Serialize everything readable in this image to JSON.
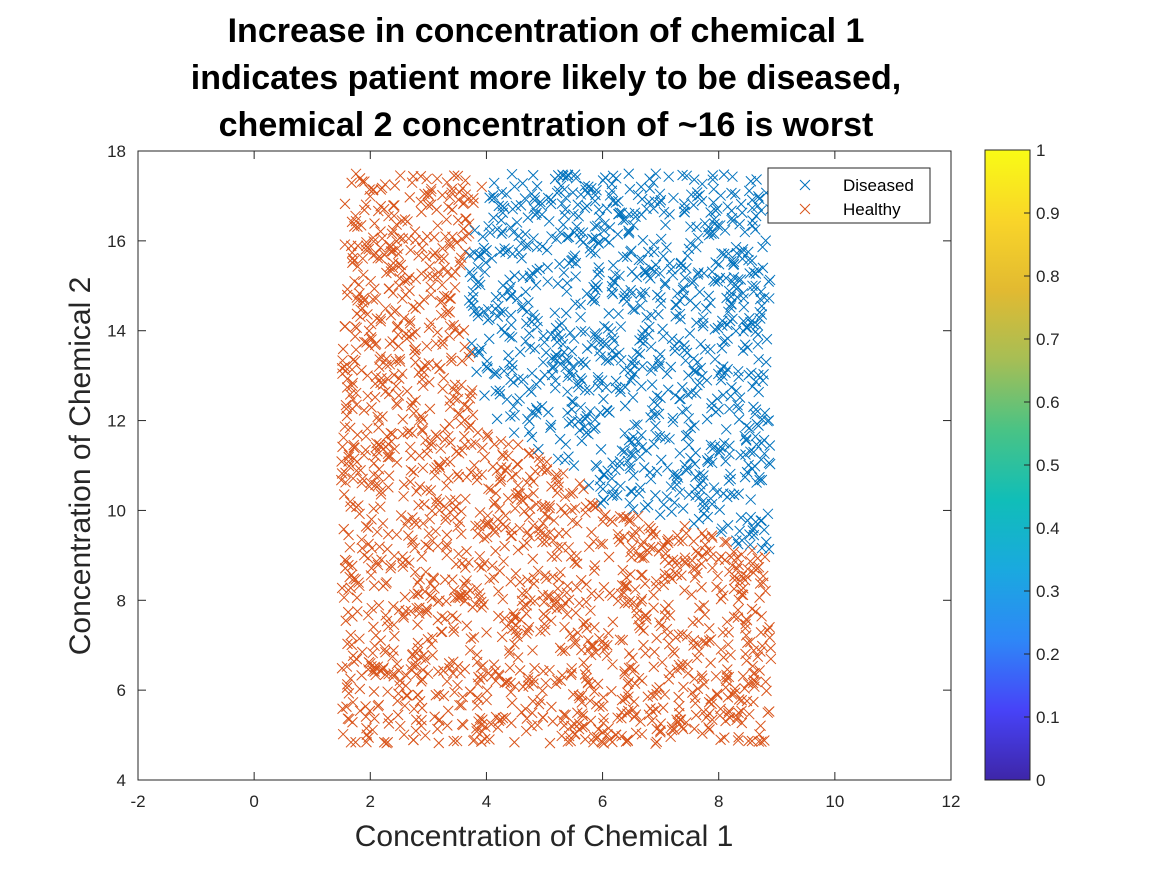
{
  "chart_data": {
    "type": "scatter",
    "title_lines": [
      "Increase in concentration of chemical 1",
      "indicates patient more likely to be diseased,",
      "chemical 2 concentration of ~16 is worst"
    ],
    "xlabel": "Concentration of Chemical 1",
    "ylabel": "Concentration of Chemical 2",
    "xlim": [
      -2,
      12
    ],
    "ylim": [
      4,
      18
    ],
    "xticks": [
      -2,
      0,
      2,
      4,
      6,
      8,
      10,
      12
    ],
    "yticks": [
      4,
      6,
      8,
      10,
      12,
      14,
      16,
      18
    ],
    "marker": "x",
    "grid": false,
    "legend_position": "top-right",
    "series": [
      {
        "name": "Diseased",
        "color": "#0072BD",
        "x_range": [
          3.7,
          8.9
        ],
        "y_range": [
          9.1,
          17.5
        ],
        "region": "upper-right"
      },
      {
        "name": "Healthy",
        "color": "#D95319",
        "x_range": [
          1.5,
          8.9
        ],
        "y_range": [
          4.8,
          17.5
        ],
        "region": "remainder"
      }
    ],
    "boundary": [
      [
        4.0,
        17.5
      ],
      [
        3.5,
        14.8
      ],
      [
        4.0,
        12.0
      ],
      [
        5.5,
        10.8
      ],
      [
        6.0,
        10.0
      ],
      [
        7.5,
        9.7
      ],
      [
        8.2,
        9.3
      ],
      [
        8.9,
        9.0
      ]
    ],
    "colorbar": {
      "ticks": [
        0,
        0.1,
        0.2,
        0.3,
        0.4,
        0.5,
        0.6,
        0.7,
        0.8,
        0.9,
        1
      ],
      "tick_labels": [
        "0",
        "0.1",
        "0.2",
        "0.3",
        "0.4",
        "0.5",
        "0.6",
        "0.7",
        "0.8",
        "0.9",
        "1"
      ],
      "colormap": [
        "#3E26A8",
        "#4743F8",
        "#2E87F7",
        "#1AA9DF",
        "#10BEB8",
        "#49C385",
        "#A6BE55",
        "#E2BA31",
        "#F9D529",
        "#F9FB15"
      ]
    }
  }
}
